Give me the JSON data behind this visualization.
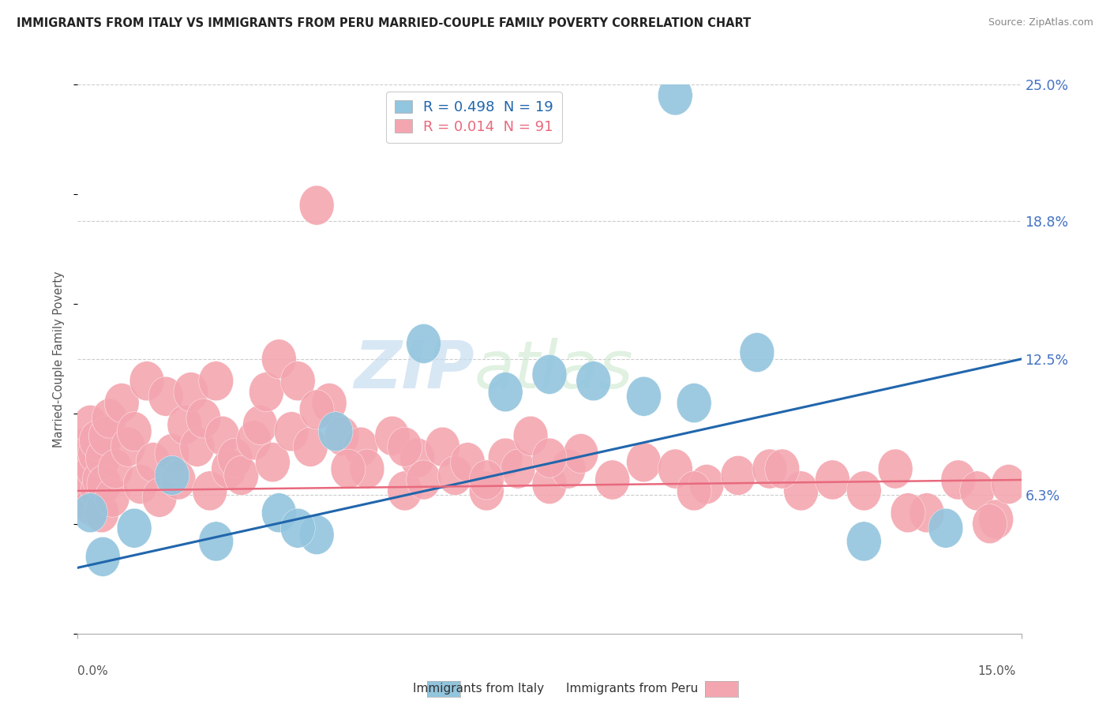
{
  "title": "IMMIGRANTS FROM ITALY VS IMMIGRANTS FROM PERU MARRIED-COUPLE FAMILY POVERTY CORRELATION CHART",
  "source": "Source: ZipAtlas.com",
  "ylabel": "Married-Couple Family Poverty",
  "xlim": [
    0.0,
    15.0
  ],
  "ylim": [
    0.0,
    25.0
  ],
  "ytick_values": [
    0.0,
    6.3,
    12.5,
    18.8,
    25.0
  ],
  "ytick_labels": [
    "",
    "6.3%",
    "12.5%",
    "18.8%",
    "25.0%"
  ],
  "italy_color": "#92c5de",
  "peru_color": "#f4a6b0",
  "italy_line_color": "#2166ac",
  "peru_line_color": "#e8697d",
  "italy_R": 0.498,
  "italy_N": 19,
  "peru_R": 0.014,
  "peru_N": 91,
  "legend_italy": "Immigrants from Italy",
  "legend_peru": "Immigrants from Peru",
  "watermark_zip": "ZIP",
  "watermark_atlas": "atlas",
  "italy_x": [
    0.2,
    0.4,
    0.9,
    1.5,
    2.2,
    3.8,
    4.1,
    5.5,
    6.8,
    8.2,
    9.0,
    9.5,
    9.8,
    10.8,
    12.5,
    13.8,
    3.2,
    3.5,
    7.5
  ],
  "italy_y": [
    5.5,
    3.5,
    4.8,
    7.2,
    4.2,
    4.5,
    9.2,
    13.2,
    11.0,
    11.5,
    10.8,
    24.5,
    10.5,
    12.8,
    4.2,
    4.8,
    5.5,
    4.8,
    11.8
  ],
  "peru_x": [
    0.05,
    0.08,
    0.1,
    0.12,
    0.15,
    0.18,
    0.2,
    0.22,
    0.25,
    0.28,
    0.3,
    0.32,
    0.35,
    0.38,
    0.4,
    0.42,
    0.45,
    0.5,
    0.55,
    0.6,
    0.7,
    0.8,
    0.9,
    1.0,
    1.1,
    1.2,
    1.3,
    1.4,
    1.5,
    1.6,
    1.7,
    1.8,
    1.9,
    2.0,
    2.1,
    2.2,
    2.3,
    2.4,
    2.5,
    2.6,
    2.8,
    2.9,
    3.0,
    3.1,
    3.2,
    3.4,
    3.5,
    3.7,
    3.8,
    4.0,
    4.2,
    4.5,
    4.6,
    5.0,
    5.2,
    5.4,
    5.5,
    5.8,
    6.0,
    6.2,
    6.5,
    6.8,
    7.0,
    7.2,
    7.5,
    7.8,
    8.0,
    8.5,
    9.0,
    9.5,
    10.0,
    10.5,
    11.0,
    11.5,
    12.0,
    12.5,
    13.0,
    13.5,
    14.0,
    14.3,
    14.6,
    14.8,
    3.8,
    4.3,
    5.2,
    6.5,
    7.5,
    9.8,
    11.2,
    13.2,
    14.5
  ],
  "peru_y": [
    6.5,
    7.2,
    7.8,
    6.2,
    8.5,
    6.8,
    9.5,
    5.8,
    7.5,
    8.2,
    8.8,
    6.5,
    7.0,
    5.5,
    8.0,
    6.8,
    9.0,
    9.8,
    6.2,
    7.5,
    10.5,
    8.5,
    9.2,
    6.8,
    11.5,
    7.8,
    6.2,
    10.8,
    8.2,
    7.0,
    9.5,
    11.0,
    8.5,
    9.8,
    6.5,
    11.5,
    9.0,
    7.5,
    8.0,
    7.2,
    8.8,
    9.5,
    11.0,
    7.8,
    12.5,
    9.2,
    11.5,
    8.5,
    19.5,
    10.5,
    9.0,
    8.5,
    7.5,
    9.0,
    6.5,
    8.0,
    7.0,
    8.5,
    7.2,
    7.8,
    6.5,
    8.0,
    7.5,
    9.0,
    6.8,
    7.5,
    8.2,
    7.0,
    7.8,
    7.5,
    6.8,
    7.2,
    7.5,
    6.5,
    7.0,
    6.5,
    7.5,
    5.5,
    7.0,
    6.5,
    5.2,
    6.8,
    10.2,
    7.5,
    8.5,
    7.0,
    8.0,
    6.5,
    7.5,
    5.5,
    5.0
  ]
}
